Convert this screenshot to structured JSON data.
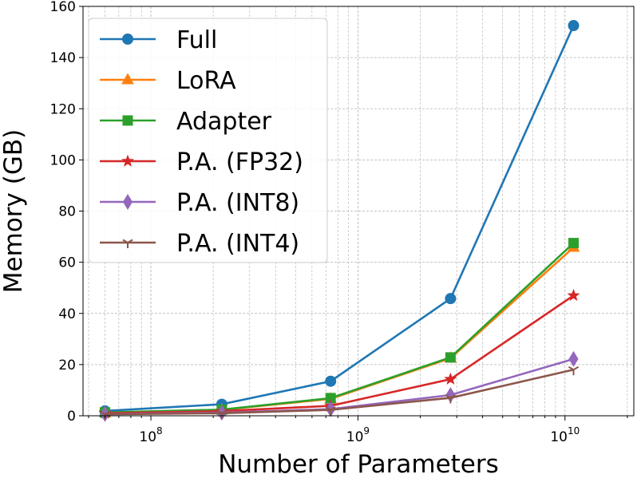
{
  "chart_data": {
    "type": "line",
    "xlabel": "Number of Parameters",
    "ylabel": "Memory (GB)",
    "x_scale": "log",
    "xlim": [
      47000000,
      21500000000
    ],
    "ylim": [
      0,
      160
    ],
    "yticks": [
      0,
      20,
      40,
      60,
      80,
      100,
      120,
      140,
      160
    ],
    "xticks": [
      {
        "value": 100000000,
        "base": "10",
        "exp": "8"
      },
      {
        "value": 1000000000,
        "base": "10",
        "exp": "9"
      },
      {
        "value": 10000000000,
        "base": "10",
        "exp": "10"
      }
    ],
    "grid": true,
    "legend_position": "upper-left",
    "x": [
      60000000,
      220000000,
      738000000,
      2800000000,
      11000000000
    ],
    "series": [
      {
        "name": "Full",
        "color": "#1f77b4",
        "marker": "circle",
        "values": [
          1.9,
          4.5,
          13.5,
          45.8,
          152.5
        ]
      },
      {
        "name": "LoRA",
        "color": "#ff7f0e",
        "marker": "triangle",
        "values": [
          1.2,
          2.3,
          6.6,
          22.5,
          65.8
        ]
      },
      {
        "name": "Adapter",
        "color": "#2ca02c",
        "marker": "square",
        "values": [
          1.3,
          2.4,
          6.9,
          22.8,
          67.5
        ]
      },
      {
        "name": "P.A. (FP32)",
        "color": "#d62728",
        "marker": "star",
        "values": [
          1.0,
          1.8,
          3.9,
          14.3,
          47.0
        ]
      },
      {
        "name": "P.A. (INT8)",
        "color": "#9467bd",
        "marker": "diamond",
        "values": [
          0.7,
          1.2,
          2.6,
          8.1,
          22.2
        ]
      },
      {
        "name": "P.A. (INT4)",
        "color": "#8c564b",
        "marker": "tri_down",
        "values": [
          0.6,
          1.0,
          2.3,
          7.0,
          18.0
        ]
      }
    ]
  }
}
